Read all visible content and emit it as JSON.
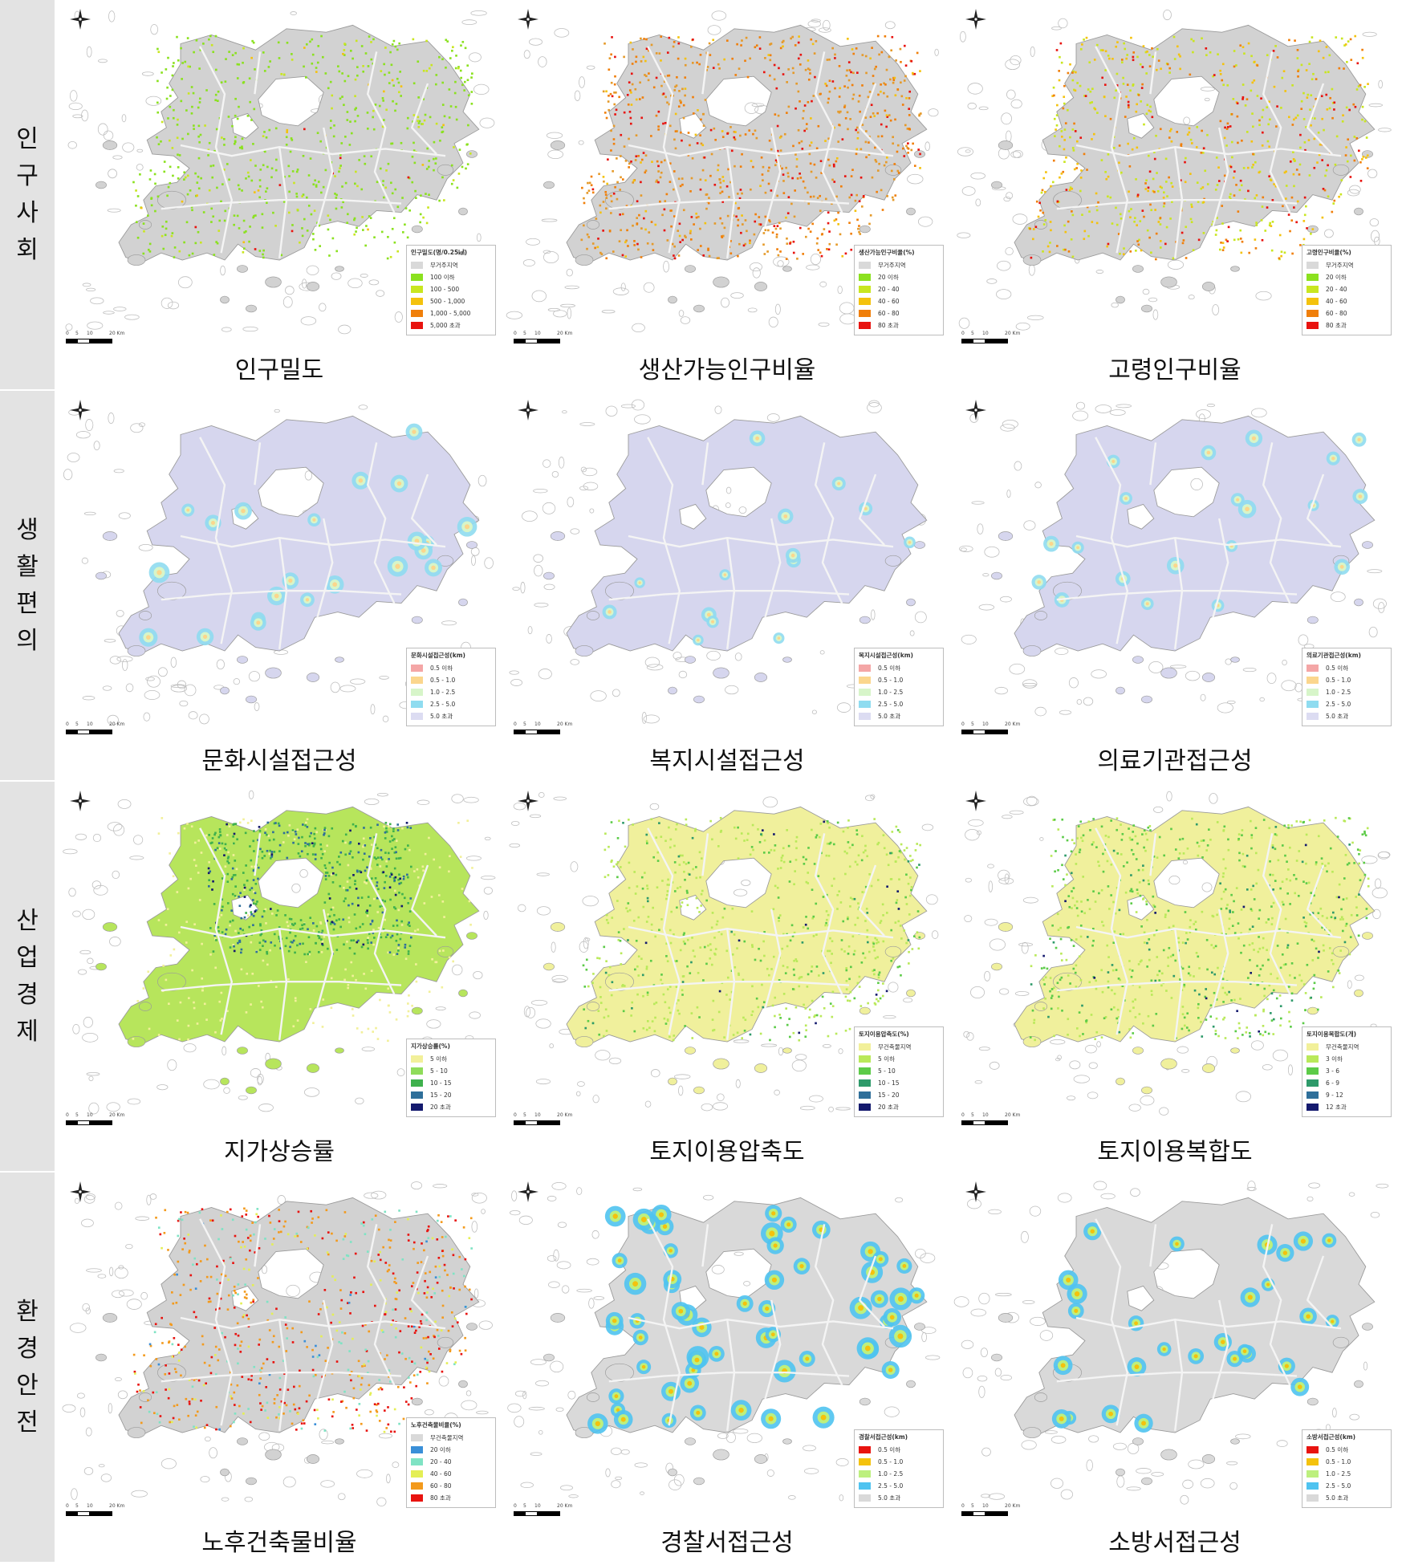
{
  "rows": [
    {
      "category_chars": [
        "인",
        "구",
        "사",
        "회"
      ],
      "panels": [
        {
          "caption": "인구밀도",
          "legend_title": "인구밀도(명/0.25㎢)",
          "legend": [
            {
              "label": "무거주지역",
              "color": "#d9d9d9"
            },
            {
              "label": "100 이하",
              "color": "#8be11f"
            },
            {
              "label": "100 - 500",
              "color": "#c9e620"
            },
            {
              "label": "500 - 1,000",
              "color": "#f4c20d"
            },
            {
              "label": "1,000 - 5,000",
              "color": "#f07f0a"
            },
            {
              "label": "5,000 초과",
              "color": "#e8130f"
            }
          ]
        },
        {
          "caption": "생산가능인구비율",
          "legend_title": "생산가능인구비율(%)",
          "legend": [
            {
              "label": "무거주지역",
              "color": "#d9d9d9"
            },
            {
              "label": "20 이하",
              "color": "#8be11f"
            },
            {
              "label": "20 - 40",
              "color": "#c9e620"
            },
            {
              "label": "40 - 60",
              "color": "#f4c20d"
            },
            {
              "label": "60 - 80",
              "color": "#f07f0a"
            },
            {
              "label": "80 초과",
              "color": "#e8130f"
            }
          ]
        },
        {
          "caption": "고령인구비율",
          "legend_title": "고령인구비율(%)",
          "legend": [
            {
              "label": "무거주지역",
              "color": "#d9d9d9"
            },
            {
              "label": "20 이하",
              "color": "#8be11f"
            },
            {
              "label": "20 - 40",
              "color": "#c9e620"
            },
            {
              "label": "40 - 60",
              "color": "#f4c20d"
            },
            {
              "label": "60 - 80",
              "color": "#f07f0a"
            },
            {
              "label": "80 초과",
              "color": "#e8130f"
            }
          ]
        }
      ]
    },
    {
      "category_chars": [
        "생",
        "활",
        "편",
        "의"
      ],
      "panels": [
        {
          "caption": "문화시설접근성",
          "legend_title": "문화시설접근성(km)",
          "legend": [
            {
              "label": "0.5 이하",
              "color": "#f4a6a6"
            },
            {
              "label": "0.5 - 1.0",
              "color": "#fbd68d"
            },
            {
              "label": "1.0 - 2.5",
              "color": "#d7f5c9"
            },
            {
              "label": "2.5 - 5.0",
              "color": "#8fdcf0"
            },
            {
              "label": "5.0 초과",
              "color": "#dcdcf2"
            }
          ]
        },
        {
          "caption": "복지시설접근성",
          "legend_title": "복지시설접근성(km)",
          "legend": [
            {
              "label": "0.5 이하",
              "color": "#f4a6a6"
            },
            {
              "label": "0.5 - 1.0",
              "color": "#fbd68d"
            },
            {
              "label": "1.0 - 2.5",
              "color": "#d7f5c9"
            },
            {
              "label": "2.5 - 5.0",
              "color": "#8fdcf0"
            },
            {
              "label": "5.0 초과",
              "color": "#dcdcf2"
            }
          ]
        },
        {
          "caption": "의료기관접근성",
          "legend_title": "의료기관접근성(km)",
          "legend": [
            {
              "label": "0.5 이하",
              "color": "#f4a6a6"
            },
            {
              "label": "0.5 - 1.0",
              "color": "#fbd68d"
            },
            {
              "label": "1.0 - 2.5",
              "color": "#d7f5c9"
            },
            {
              "label": "2.5 - 5.0",
              "color": "#8fdcf0"
            },
            {
              "label": "5.0 초과",
              "color": "#dcdcf2"
            }
          ]
        }
      ]
    },
    {
      "category_chars": [
        "산",
        "업",
        "경",
        "제"
      ],
      "panels": [
        {
          "caption": "지가상승률",
          "legend_title": "지가상승률(%)",
          "legend": [
            {
              "label": "5 이하",
              "color": "#f2f09a"
            },
            {
              "label": "5 - 10",
              "color": "#8fdc5a"
            },
            {
              "label": "10 - 15",
              "color": "#3fb14d"
            },
            {
              "label": "15 - 20",
              "color": "#2f6f9a"
            },
            {
              "label": "20 초과",
              "color": "#141a6e"
            }
          ]
        },
        {
          "caption": "토지이용압축도",
          "legend_title": "토지이용압축도(%)",
          "legend": [
            {
              "label": "무건축물지역",
              "color": "#f2f09a"
            },
            {
              "label": "5 이하",
              "color": "#b9e95a"
            },
            {
              "label": "5 - 10",
              "color": "#5ccb48"
            },
            {
              "label": "10 - 15",
              "color": "#2e9a6a"
            },
            {
              "label": "15 - 20",
              "color": "#2f6f9a"
            },
            {
              "label": "20 초과",
              "color": "#141a6e"
            }
          ]
        },
        {
          "caption": "토지이용복합도",
          "legend_title": "토지이용복합도(개)",
          "legend": [
            {
              "label": "무건축물지역",
              "color": "#f2f09a"
            },
            {
              "label": "3 이하",
              "color": "#b9e95a"
            },
            {
              "label": "3 - 6",
              "color": "#5ccb48"
            },
            {
              "label": "6 - 9",
              "color": "#2e9a6a"
            },
            {
              "label": "9 - 12",
              "color": "#2f6f9a"
            },
            {
              "label": "12 초과",
              "color": "#141a6e"
            }
          ]
        }
      ]
    },
    {
      "category_chars": [
        "환",
        "경",
        "안",
        "전"
      ],
      "panels": [
        {
          "caption": "노후건축물비율",
          "legend_title": "노후건축물비율(%)",
          "legend": [
            {
              "label": "무건축물지역",
              "color": "#d9d9d9"
            },
            {
              "label": "20 이하",
              "color": "#3a8fd8"
            },
            {
              "label": "20 - 40",
              "color": "#7fe3c4"
            },
            {
              "label": "40 - 60",
              "color": "#e4ef55"
            },
            {
              "label": "60 - 80",
              "color": "#f39a1c"
            },
            {
              "label": "80 초과",
              "color": "#e8130f"
            }
          ]
        },
        {
          "caption": "경찰서접근성",
          "legend_title": "경찰서접근성(km)",
          "legend": [
            {
              "label": "0.5 이하",
              "color": "#e8130f"
            },
            {
              "label": "0.5 - 1.0",
              "color": "#f4c20d"
            },
            {
              "label": "1.0 - 2.5",
              "color": "#bdf07e"
            },
            {
              "label": "2.5 - 5.0",
              "color": "#4fc3f0"
            },
            {
              "label": "5.0 초과",
              "color": "#d9d9d9"
            }
          ]
        },
        {
          "caption": "소방서접근성",
          "legend_title": "소방서접근성(km)",
          "legend": [
            {
              "label": "0.5 이하",
              "color": "#e8130f"
            },
            {
              "label": "0.5 - 1.0",
              "color": "#f4c20d"
            },
            {
              "label": "1.0 - 2.5",
              "color": "#bdf07e"
            },
            {
              "label": "2.5 - 5.0",
              "color": "#4fc3f0"
            },
            {
              "label": "5.0 초과",
              "color": "#d9d9d9"
            }
          ]
        }
      ]
    }
  ],
  "scale_bar": {
    "labels": [
      "0",
      "5",
      "10",
      "20 Km"
    ]
  }
}
